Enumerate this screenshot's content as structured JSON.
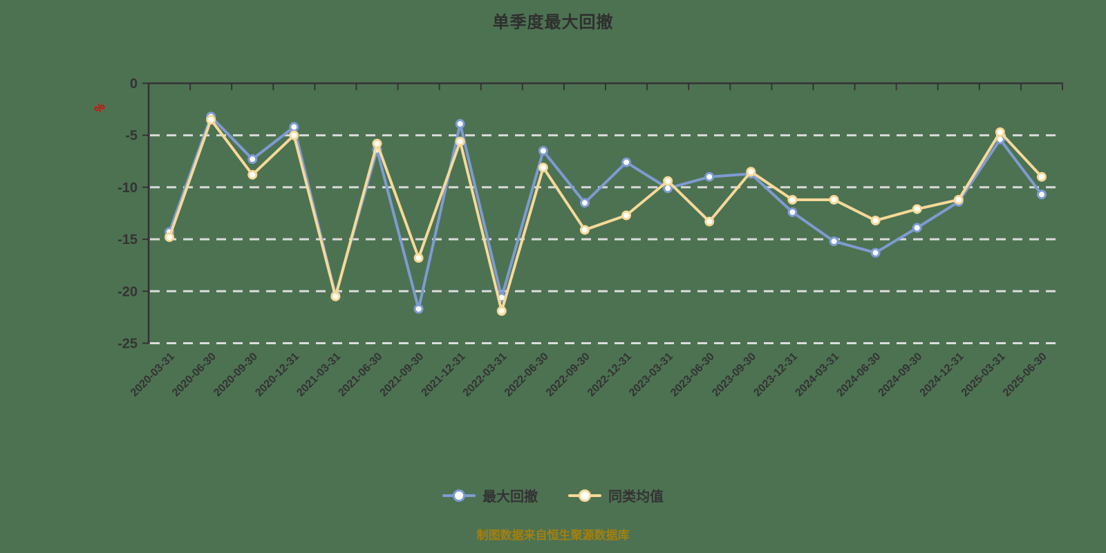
{
  "page": {
    "background": "#4D7252"
  },
  "header": {
    "title": "单季度最大回撤"
  },
  "y_axis": {
    "unit_label": "%",
    "unit_color": "#E60000",
    "tick_labels": [
      "0",
      "-5",
      "-10",
      "-15",
      "-20",
      "-25"
    ]
  },
  "footer": {
    "text": "制图数据来自恒生聚源数据库",
    "color": "#A3800F"
  },
  "chart_data": {
    "type": "line",
    "title": "单季度最大回撤",
    "xlabel": "",
    "ylabel": "%",
    "ylim": [
      -25,
      0
    ],
    "yticks": [
      0,
      -5,
      -10,
      -15,
      -20,
      -25
    ],
    "grid": "horizontal-dashed",
    "legend_position": "bottom",
    "categories": [
      "2020-03-31",
      "2020-06-30",
      "2020-09-30",
      "2020-12-31",
      "2021-03-31",
      "2021-06-30",
      "2021-09-30",
      "2021-12-31",
      "2022-03-31",
      "2022-06-30",
      "2022-09-30",
      "2022-12-31",
      "2023-03-31",
      "2023-06-30",
      "2023-09-30",
      "2023-12-31",
      "2024-03-31",
      "2024-06-30",
      "2024-09-30",
      "2024-12-31",
      "2025-03-31",
      "2025-06-30"
    ],
    "series": [
      {
        "name": "最大回撤",
        "color": "#7E9BD2",
        "marker": "circle-hollow",
        "values": [
          -14.3,
          -3.2,
          -7.3,
          -4.2,
          -20.4,
          -6.4,
          -21.7,
          -3.9,
          -20.6,
          -6.5,
          -11.5,
          -7.6,
          -10.1,
          -9.0,
          -8.7,
          -12.4,
          -15.2,
          -16.3,
          -13.9,
          -11.4,
          -5.4,
          -10.7
        ]
      },
      {
        "name": "同类均值",
        "color": "#F6D998",
        "marker": "circle-hollow",
        "values": [
          -14.8,
          -3.5,
          -8.8,
          -5.0,
          -20.5,
          -5.8,
          -16.8,
          -5.6,
          -21.9,
          -8.1,
          -14.1,
          -12.7,
          -9.4,
          -13.3,
          -8.5,
          -11.2,
          -11.2,
          -13.2,
          -12.1,
          -11.2,
          -4.7,
          -9.0
        ]
      }
    ],
    "style": {
      "axis_color": "#333333",
      "gridline_color": "#DCDCDC",
      "label_color": "#333333"
    }
  }
}
